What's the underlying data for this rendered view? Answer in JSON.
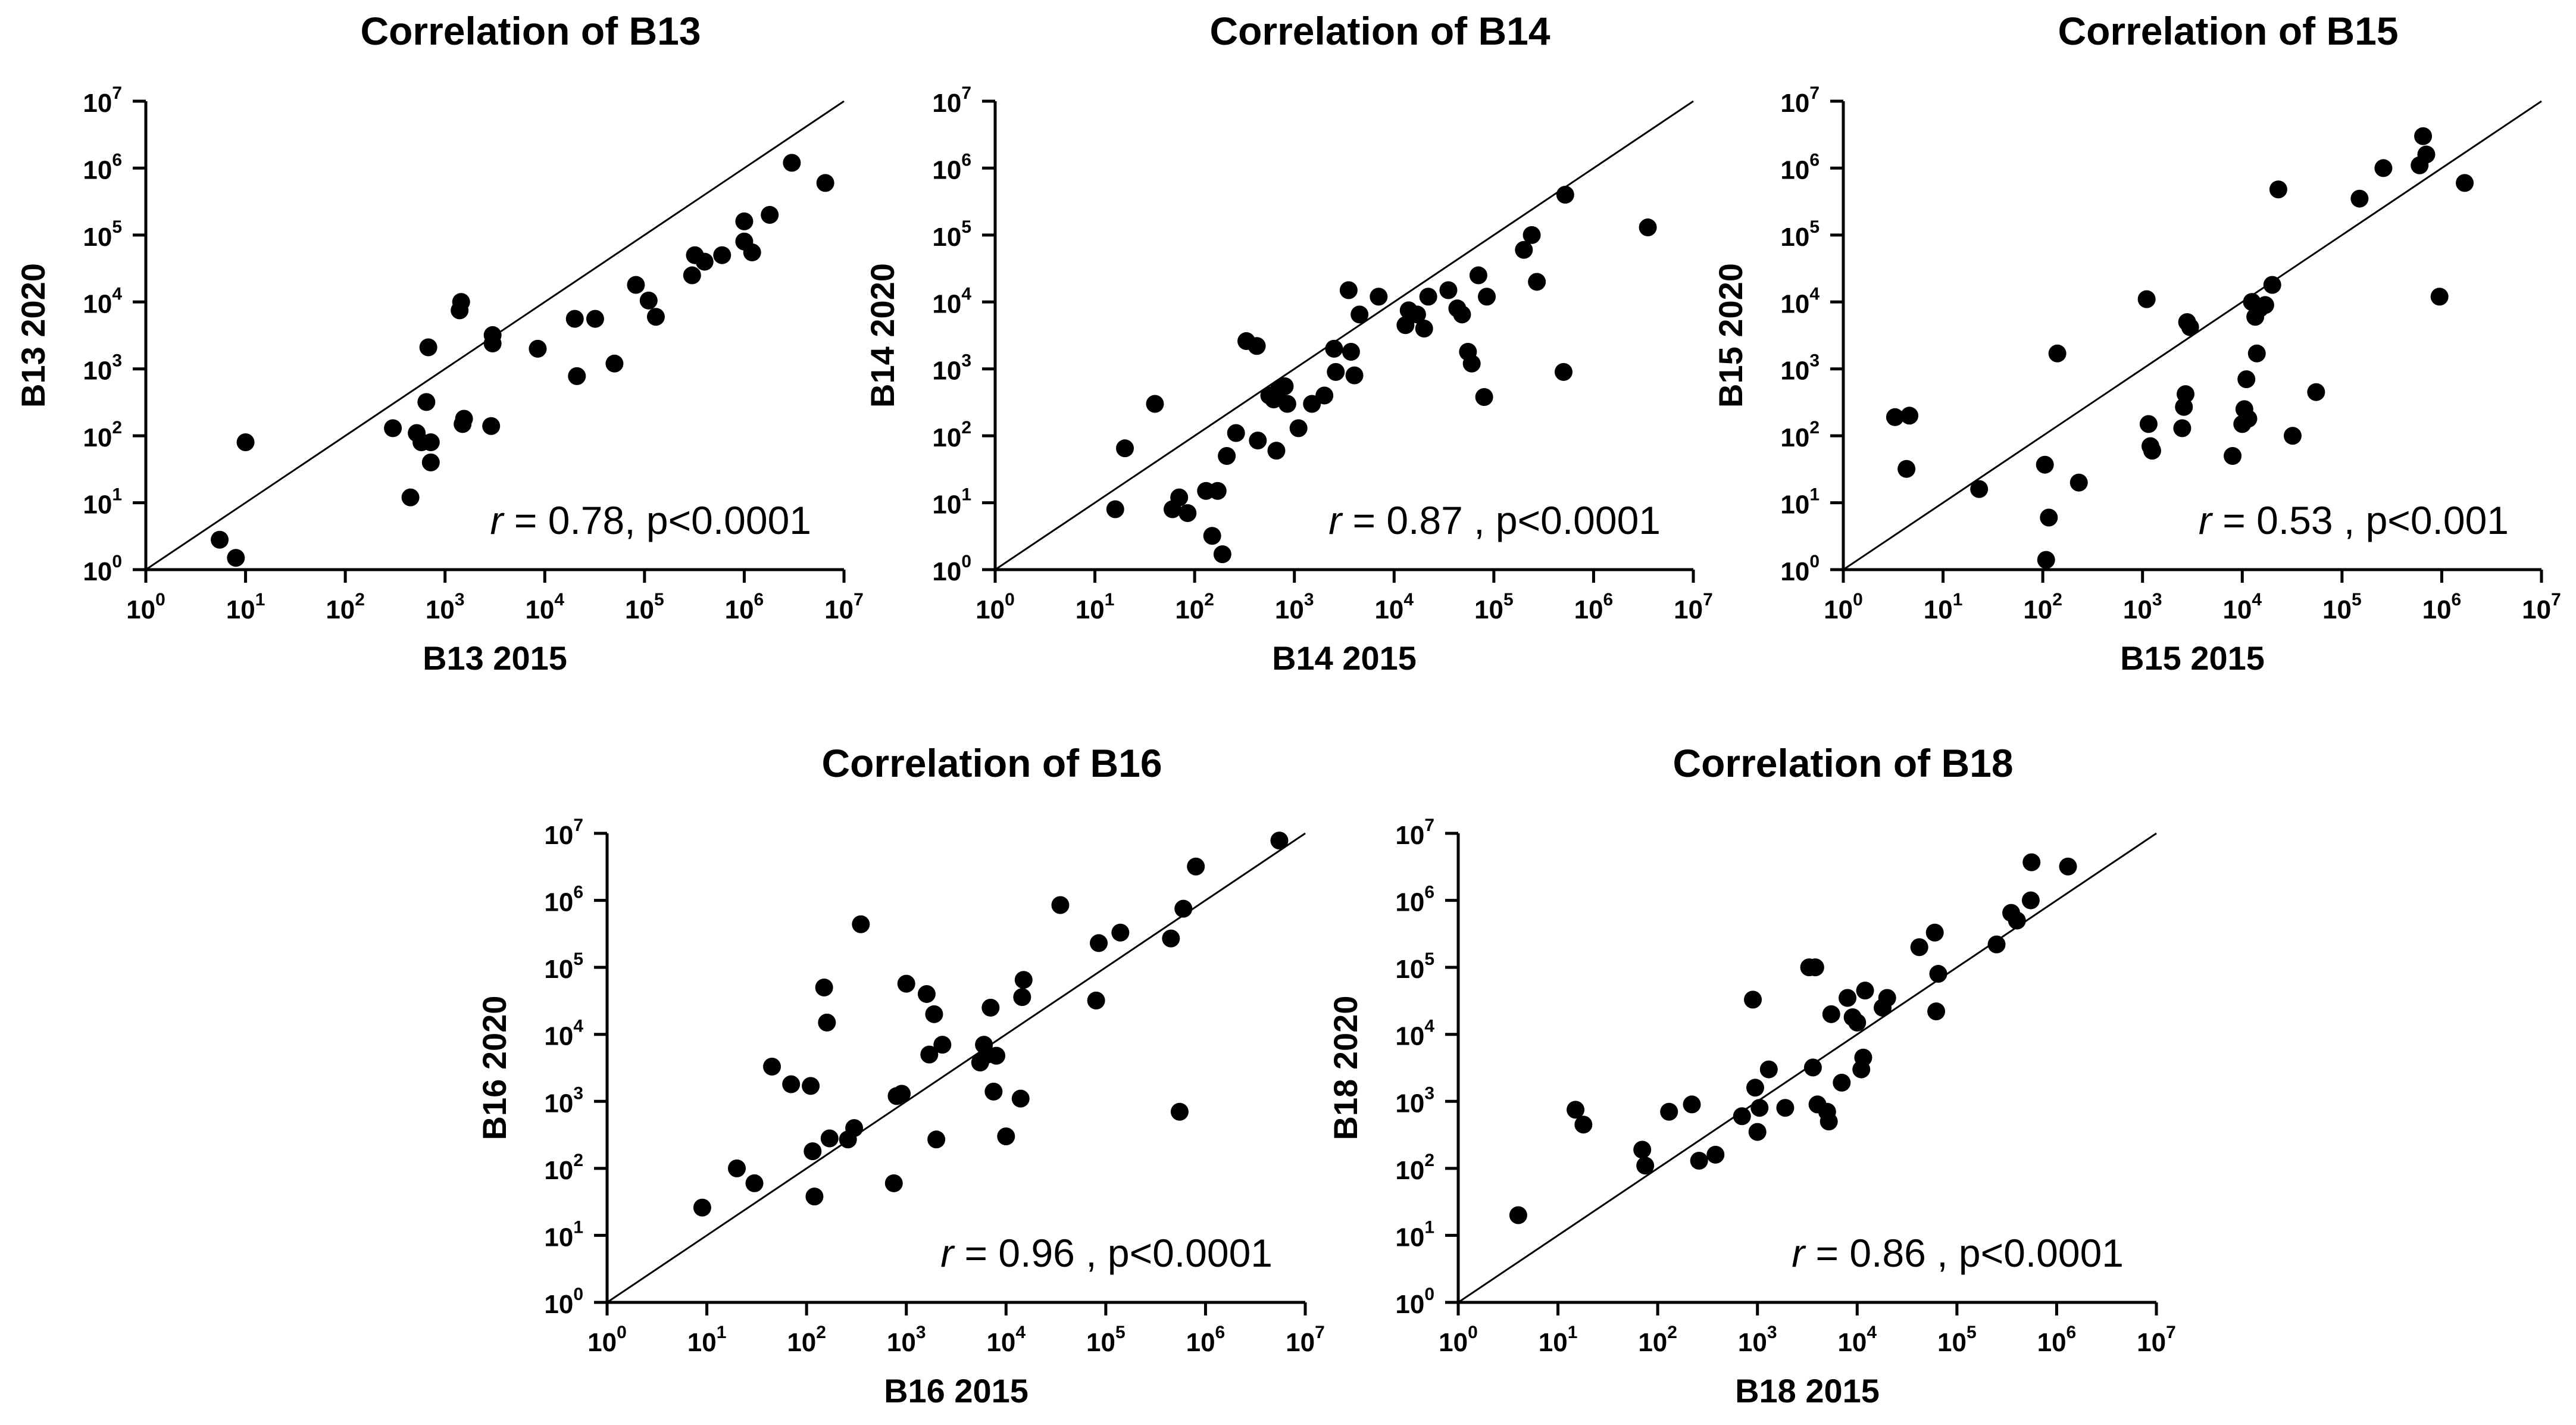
{
  "chart_data": [
    {
      "type": "scatter",
      "title": "Correlation of B13",
      "xlabel": "B13 2015",
      "ylabel": "B13 2020",
      "x_scale": "log10",
      "y_scale": "log10",
      "xlim": [
        1,
        10000000
      ],
      "ylim": [
        1,
        10000000
      ],
      "tick_labels": [
        "10^0",
        "10^1",
        "10^2",
        "10^3",
        "10^4",
        "10^5",
        "10^6",
        "10^7"
      ],
      "reference_line": "y = x",
      "annotation": {
        "r_symbol": "r",
        "text": "= 0.78, p<0.0001"
      },
      "points": [
        {
          "x": 5.5,
          "y": 2.8
        },
        {
          "x": 8,
          "y": 1.5
        },
        {
          "x": 10,
          "y": 80
        },
        {
          "x": 300,
          "y": 130
        },
        {
          "x": 450,
          "y": 12
        },
        {
          "x": 520,
          "y": 110
        },
        {
          "x": 580,
          "y": 80
        },
        {
          "x": 650,
          "y": 320
        },
        {
          "x": 680,
          "y": 2100
        },
        {
          "x": 720,
          "y": 80
        },
        {
          "x": 720,
          "y": 40
        },
        {
          "x": 1400,
          "y": 7500
        },
        {
          "x": 1450,
          "y": 10000
        },
        {
          "x": 1500,
          "y": 150
        },
        {
          "x": 1550,
          "y": 180
        },
        {
          "x": 2900,
          "y": 140
        },
        {
          "x": 3000,
          "y": 2400
        },
        {
          "x": 3000,
          "y": 3200
        },
        {
          "x": 8500,
          "y": 2000
        },
        {
          "x": 20000,
          "y": 5600
        },
        {
          "x": 21000,
          "y": 780
        },
        {
          "x": 32000,
          "y": 5600
        },
        {
          "x": 50000,
          "y": 1200
        },
        {
          "x": 82000,
          "y": 18000
        },
        {
          "x": 110000,
          "y": 10500
        },
        {
          "x": 130000,
          "y": 6000
        },
        {
          "x": 300000,
          "y": 25000
        },
        {
          "x": 320000,
          "y": 50000
        },
        {
          "x": 400000,
          "y": 40000
        },
        {
          "x": 600000,
          "y": 50000
        },
        {
          "x": 1000000,
          "y": 80000
        },
        {
          "x": 1000000,
          "y": 160000
        },
        {
          "x": 1200000,
          "y": 55000
        },
        {
          "x": 1800000,
          "y": 200000
        },
        {
          "x": 3000000,
          "y": 1200000
        },
        {
          "x": 6500000,
          "y": 600000
        }
      ]
    },
    {
      "type": "scatter",
      "title": "Correlation of B14",
      "xlabel": "B14 2015",
      "ylabel": "B14 2020",
      "x_scale": "log10",
      "y_scale": "log10",
      "xlim": [
        1,
        10000000
      ],
      "ylim": [
        1,
        10000000
      ],
      "tick_labels": [
        "10^0",
        "10^1",
        "10^2",
        "10^3",
        "10^4",
        "10^5",
        "10^6",
        "10^7"
      ],
      "reference_line": "y = x",
      "annotation": {
        "r_symbol": "r",
        "text": "= 0.87 , p<0.0001"
      },
      "points": [
        {
          "x": 16,
          "y": 8
        },
        {
          "x": 20,
          "y": 65
        },
        {
          "x": 40,
          "y": 300
        },
        {
          "x": 60,
          "y": 8
        },
        {
          "x": 70,
          "y": 12
        },
        {
          "x": 85,
          "y": 7
        },
        {
          "x": 130,
          "y": 15
        },
        {
          "x": 150,
          "y": 3.2
        },
        {
          "x": 170,
          "y": 15
        },
        {
          "x": 190,
          "y": 1.7
        },
        {
          "x": 210,
          "y": 50
        },
        {
          "x": 260,
          "y": 110
        },
        {
          "x": 330,
          "y": 2600
        },
        {
          "x": 420,
          "y": 2200
        },
        {
          "x": 430,
          "y": 85
        },
        {
          "x": 560,
          "y": 400
        },
        {
          "x": 620,
          "y": 350
        },
        {
          "x": 660,
          "y": 60
        },
        {
          "x": 700,
          "y": 500
        },
        {
          "x": 800,
          "y": 550
        },
        {
          "x": 850,
          "y": 300
        },
        {
          "x": 1100,
          "y": 130
        },
        {
          "x": 1500,
          "y": 300
        },
        {
          "x": 2000,
          "y": 400
        },
        {
          "x": 2500,
          "y": 2000
        },
        {
          "x": 2600,
          "y": 900
        },
        {
          "x": 3500,
          "y": 15000
        },
        {
          "x": 3700,
          "y": 1800
        },
        {
          "x": 4000,
          "y": 800
        },
        {
          "x": 4500,
          "y": 6500
        },
        {
          "x": 7000,
          "y": 12000
        },
        {
          "x": 13000,
          "y": 4500
        },
        {
          "x": 14000,
          "y": 7500
        },
        {
          "x": 17000,
          "y": 6500
        },
        {
          "x": 20000,
          "y": 4000
        },
        {
          "x": 22000,
          "y": 12000
        },
        {
          "x": 35000,
          "y": 15000
        },
        {
          "x": 43000,
          "y": 8000
        },
        {
          "x": 48000,
          "y": 6500
        },
        {
          "x": 55000,
          "y": 1800
        },
        {
          "x": 60000,
          "y": 1200
        },
        {
          "x": 70000,
          "y": 25000
        },
        {
          "x": 80000,
          "y": 380
        },
        {
          "x": 85000,
          "y": 12000
        },
        {
          "x": 200000,
          "y": 60000
        },
        {
          "x": 240000,
          "y": 100000
        },
        {
          "x": 270000,
          "y": 20000
        },
        {
          "x": 500000,
          "y": 900
        },
        {
          "x": 520000,
          "y": 400000
        },
        {
          "x": 3500000,
          "y": 130000
        }
      ]
    },
    {
      "type": "scatter",
      "title": "Correlation of B15",
      "xlabel": "B15 2015",
      "ylabel": "B15 2020",
      "x_scale": "log10",
      "y_scale": "log10",
      "xlim": [
        1,
        10000000
      ],
      "ylim": [
        1,
        10000000
      ],
      "tick_labels": [
        "10^0",
        "10^1",
        "10^2",
        "10^3",
        "10^4",
        "10^5",
        "10^6",
        "10^7"
      ],
      "reference_line": "y = x",
      "annotation": {
        "r_symbol": "r",
        "text": "= 0.53 , p<0.001"
      },
      "points": [
        {
          "x": 3.3,
          "y": 190
        },
        {
          "x": 4.3,
          "y": 32
        },
        {
          "x": 4.6,
          "y": 200
        },
        {
          "x": 23,
          "y": 16
        },
        {
          "x": 105,
          "y": 37
        },
        {
          "x": 108,
          "y": 1.4
        },
        {
          "x": 115,
          "y": 6
        },
        {
          "x": 140,
          "y": 1700
        },
        {
          "x": 230,
          "y": 20
        },
        {
          "x": 1100,
          "y": 11000
        },
        {
          "x": 1150,
          "y": 150
        },
        {
          "x": 1200,
          "y": 70
        },
        {
          "x": 1250,
          "y": 60
        },
        {
          "x": 2500,
          "y": 130
        },
        {
          "x": 2600,
          "y": 270
        },
        {
          "x": 2700,
          "y": 420
        },
        {
          "x": 2800,
          "y": 5000
        },
        {
          "x": 3000,
          "y": 4200
        },
        {
          "x": 8000,
          "y": 50
        },
        {
          "x": 10000,
          "y": 150
        },
        {
          "x": 10500,
          "y": 250
        },
        {
          "x": 11000,
          "y": 700
        },
        {
          "x": 11500,
          "y": 180
        },
        {
          "x": 12500,
          "y": 10000
        },
        {
          "x": 13500,
          "y": 6000
        },
        {
          "x": 14000,
          "y": 1700
        },
        {
          "x": 15000,
          "y": 8000
        },
        {
          "x": 17000,
          "y": 9000
        },
        {
          "x": 20000,
          "y": 18000
        },
        {
          "x": 23000,
          "y": 480000
        },
        {
          "x": 32000,
          "y": 100
        },
        {
          "x": 55000,
          "y": 450
        },
        {
          "x": 150000,
          "y": 350000
        },
        {
          "x": 260000,
          "y": 1000000
        },
        {
          "x": 600000,
          "y": 1100000
        },
        {
          "x": 650000,
          "y": 3000000
        },
        {
          "x": 700000,
          "y": 1600000
        },
        {
          "x": 950000,
          "y": 12000
        },
        {
          "x": 1700000,
          "y": 600000
        }
      ]
    },
    {
      "type": "scatter",
      "title": "Correlation of B16",
      "xlabel": "B16 2015",
      "ylabel": "B16 2020",
      "x_scale": "log10",
      "y_scale": "log10",
      "xlim": [
        1,
        10000000
      ],
      "ylim": [
        1,
        10000000
      ],
      "tick_labels": [
        "10^0",
        "10^1",
        "10^2",
        "10^3",
        "10^4",
        "10^5",
        "10^6",
        "10^7"
      ],
      "reference_line": "y = x",
      "annotation": {
        "r_symbol": "r",
        "text": "= 0.96 , p<0.0001"
      },
      "points": [
        {
          "x": 9,
          "y": 26
        },
        {
          "x": 20,
          "y": 100
        },
        {
          "x": 30,
          "y": 60
        },
        {
          "x": 45,
          "y": 3300
        },
        {
          "x": 70,
          "y": 1800
        },
        {
          "x": 110,
          "y": 1700
        },
        {
          "x": 115,
          "y": 180
        },
        {
          "x": 120,
          "y": 38
        },
        {
          "x": 150,
          "y": 50000
        },
        {
          "x": 160,
          "y": 15000
        },
        {
          "x": 170,
          "y": 280
        },
        {
          "x": 260,
          "y": 270
        },
        {
          "x": 300,
          "y": 400
        },
        {
          "x": 350,
          "y": 440000
        },
        {
          "x": 750,
          "y": 60
        },
        {
          "x": 800,
          "y": 1200
        },
        {
          "x": 900,
          "y": 1300
        },
        {
          "x": 1000,
          "y": 57000
        },
        {
          "x": 1600,
          "y": 40000
        },
        {
          "x": 1700,
          "y": 5000
        },
        {
          "x": 1900,
          "y": 20000
        },
        {
          "x": 2000,
          "y": 270
        },
        {
          "x": 2300,
          "y": 7000
        },
        {
          "x": 5500,
          "y": 3800
        },
        {
          "x": 6000,
          "y": 7000
        },
        {
          "x": 6500,
          "y": 5000
        },
        {
          "x": 7000,
          "y": 25000
        },
        {
          "x": 7500,
          "y": 1400
        },
        {
          "x": 8000,
          "y": 4800
        },
        {
          "x": 10000,
          "y": 300
        },
        {
          "x": 14000,
          "y": 1100
        },
        {
          "x": 14500,
          "y": 36000
        },
        {
          "x": 15000,
          "y": 65000
        },
        {
          "x": 35000,
          "y": 850000
        },
        {
          "x": 80000,
          "y": 32000
        },
        {
          "x": 85000,
          "y": 230000
        },
        {
          "x": 140000,
          "y": 330000
        },
        {
          "x": 450000,
          "y": 270000
        },
        {
          "x": 550000,
          "y": 700
        },
        {
          "x": 600000,
          "y": 750000
        },
        {
          "x": 800000,
          "y": 3200000
        },
        {
          "x": 5500000,
          "y": 7800000
        }
      ]
    },
    {
      "type": "scatter",
      "title": "Correlation of B18",
      "xlabel": "B18 2015",
      "ylabel": "B18 2020",
      "x_scale": "log10",
      "y_scale": "log10",
      "xlim": [
        1,
        10000000
      ],
      "ylim": [
        1,
        10000000
      ],
      "tick_labels": [
        "10^0",
        "10^1",
        "10^2",
        "10^3",
        "10^4",
        "10^5",
        "10^6",
        "10^7"
      ],
      "reference_line": "y = x",
      "annotation": {
        "r_symbol": "r",
        "text": "= 0.86 , p<0.0001"
      },
      "points": [
        {
          "x": 4,
          "y": 20
        },
        {
          "x": 15,
          "y": 750
        },
        {
          "x": 18,
          "y": 450
        },
        {
          "x": 70,
          "y": 190
        },
        {
          "x": 75,
          "y": 110
        },
        {
          "x": 130,
          "y": 700
        },
        {
          "x": 220,
          "y": 900
        },
        {
          "x": 260,
          "y": 130
        },
        {
          "x": 380,
          "y": 160
        },
        {
          "x": 700,
          "y": 600
        },
        {
          "x": 900,
          "y": 33000
        },
        {
          "x": 950,
          "y": 1600
        },
        {
          "x": 1000,
          "y": 350
        },
        {
          "x": 1050,
          "y": 800
        },
        {
          "x": 1300,
          "y": 3000
        },
        {
          "x": 1900,
          "y": 800
        },
        {
          "x": 3300,
          "y": 100000
        },
        {
          "x": 3600,
          "y": 3200
        },
        {
          "x": 3800,
          "y": 100000
        },
        {
          "x": 4000,
          "y": 900
        },
        {
          "x": 5000,
          "y": 700
        },
        {
          "x": 5200,
          "y": 500
        },
        {
          "x": 5500,
          "y": 20000
        },
        {
          "x": 7000,
          "y": 1900
        },
        {
          "x": 8000,
          "y": 35000
        },
        {
          "x": 9000,
          "y": 18000
        },
        {
          "x": 10000,
          "y": 15000
        },
        {
          "x": 11000,
          "y": 3000
        },
        {
          "x": 11500,
          "y": 4500
        },
        {
          "x": 12000,
          "y": 45000
        },
        {
          "x": 18000,
          "y": 25000
        },
        {
          "x": 20000,
          "y": 35000
        },
        {
          "x": 42000,
          "y": 200000
        },
        {
          "x": 60000,
          "y": 330000
        },
        {
          "x": 62000,
          "y": 22000
        },
        {
          "x": 65000,
          "y": 80000
        },
        {
          "x": 250000,
          "y": 220000
        },
        {
          "x": 350000,
          "y": 650000
        },
        {
          "x": 400000,
          "y": 500000
        },
        {
          "x": 550000,
          "y": 1000000
        },
        {
          "x": 560000,
          "y": 3700000
        },
        {
          "x": 1300000,
          "y": 3200000
        }
      ]
    }
  ]
}
